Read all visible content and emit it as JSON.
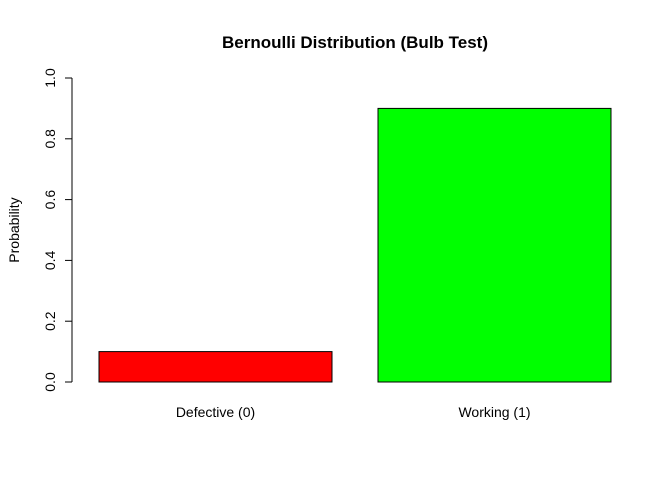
{
  "chart_data": {
    "type": "bar",
    "title": "Bernoulli Distribution (Bulb Test)",
    "xlabel": "",
    "ylabel": "Probability",
    "categories": [
      "Defective (0)",
      "Working (1)"
    ],
    "values": [
      0.1,
      0.9
    ],
    "colors": [
      "#ff0000",
      "#00ff00"
    ],
    "ylim": [
      0,
      1
    ],
    "yticks": [
      0.0,
      0.2,
      0.4,
      0.6,
      0.8,
      1.0
    ],
    "ytick_labels": [
      "0.0",
      "0.2",
      "0.4",
      "0.6",
      "0.8",
      "1.0"
    ],
    "grid": false,
    "legend": "none"
  }
}
